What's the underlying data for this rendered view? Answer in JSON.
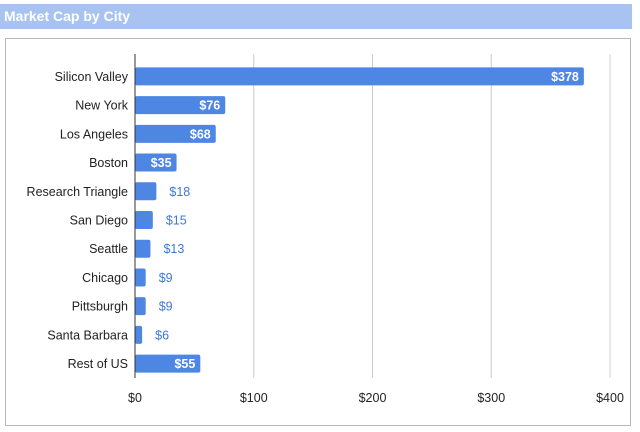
{
  "header": {
    "title": "Market Cap by City"
  },
  "chart_data": {
    "type": "bar",
    "orientation": "horizontal",
    "title": "Market Cap by City",
    "categories": [
      "Silicon Valley",
      "New York",
      "Los Angeles",
      "Boston",
      "Research Triangle",
      "San Diego",
      "Seattle",
      "Chicago",
      "Pittsburgh",
      "Santa Barbara",
      "Rest of US"
    ],
    "values": [
      378,
      76,
      68,
      35,
      18,
      15,
      13,
      9,
      9,
      6,
      55
    ],
    "value_labels": [
      "$378",
      "$76",
      "$68",
      "$35",
      "$18",
      "$15",
      "$13",
      "$9",
      "$9",
      "$6",
      "$55"
    ],
    "xlim": [
      0,
      400
    ],
    "x_ticks": [
      0,
      100,
      200,
      300,
      400
    ],
    "x_tick_labels": [
      "$0",
      "$100",
      "$200",
      "$300",
      "$400"
    ],
    "grid": true,
    "legend": "none",
    "bar_color": "#4e86e4",
    "label_color_outside": "#3d79d8"
  }
}
